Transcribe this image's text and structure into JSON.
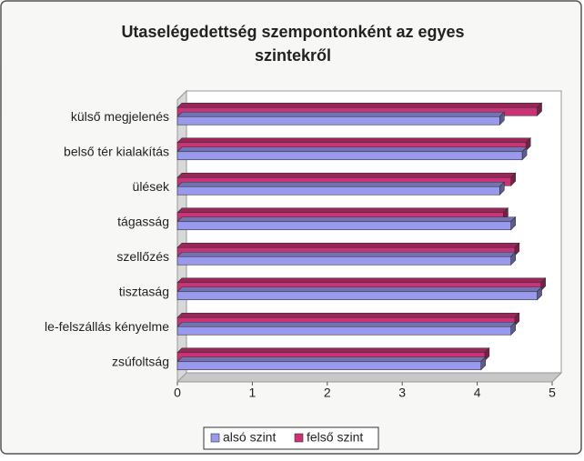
{
  "chart_data": {
    "type": "hbar3d",
    "title": [
      "Utaselégedettség szempontonként az egyes",
      "szintekről"
    ],
    "categories": [
      "külső megjelenés",
      "belső tér kialakítás",
      "ülések",
      "tágasság",
      "szellőzés",
      "tisztaság",
      "le-felszállás kényelme",
      "zsúfoltság"
    ],
    "series": [
      {
        "name": "alsó szint",
        "color": "#9999ee",
        "values": [
          4.3,
          4.6,
          4.3,
          4.45,
          4.45,
          4.8,
          4.45,
          4.05
        ]
      },
      {
        "name": "felső szint",
        "color": "#cc3377",
        "values": [
          4.8,
          4.65,
          4.45,
          4.35,
          4.5,
          4.85,
          4.5,
          4.1
        ]
      }
    ],
    "xlim": [
      0,
      5
    ],
    "xticks": [
      0,
      1,
      2,
      3,
      4,
      5
    ],
    "legend": "bottom"
  }
}
